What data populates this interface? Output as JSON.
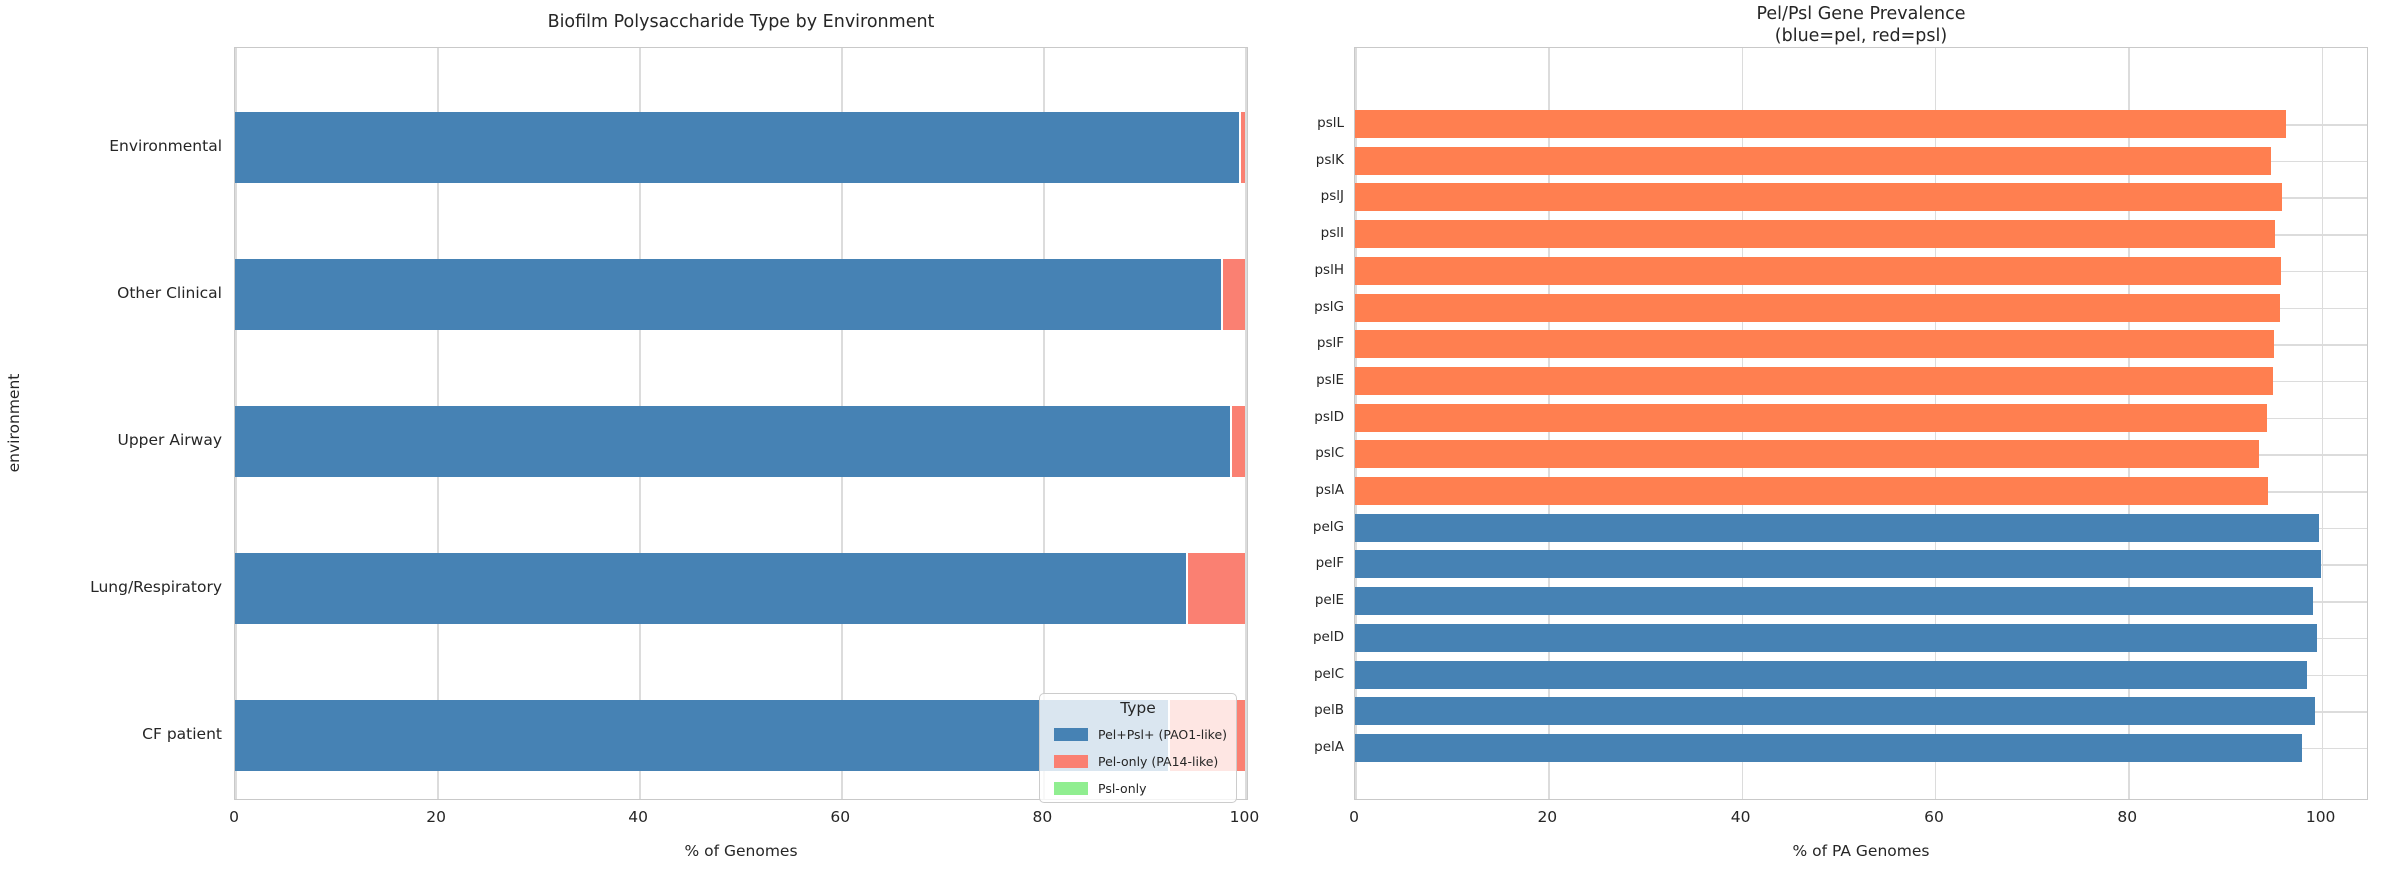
{
  "figure": {
    "background": "#ffffff",
    "grid_color": "#dcdcdc",
    "spine_color": "#c9c9c9",
    "text_color": "#262626"
  },
  "chart_data": [
    {
      "type": "bar",
      "orientation": "horizontal",
      "stacked": true,
      "title": "Biofilm Polysaccharide Type by Environment",
      "xlabel": "% of Genomes",
      "ylabel": "environment",
      "categories": [
        "Environmental",
        "Other Clinical",
        "Upper Airway",
        "Lung/Respiratory",
        "CF patient"
      ],
      "series": [
        {
          "name": "Pel+Psl+ (PAO1-like)",
          "color": "#4682b4",
          "values": [
            99.4,
            97.6,
            98.5,
            94.1,
            92.3
          ]
        },
        {
          "name": "Pel-only (PA14-like)",
          "color": "#fa8072",
          "values": [
            0.6,
            2.4,
            1.5,
            5.9,
            7.7
          ]
        },
        {
          "name": "Psl-only",
          "color": "#90ee90",
          "values": [
            0,
            0,
            0,
            0,
            0
          ]
        }
      ],
      "xticks": [
        0,
        20,
        40,
        60,
        80,
        100
      ],
      "xlim": [
        0,
        100.35
      ],
      "grid": true,
      "legend": {
        "title": "Type",
        "position": "lower right"
      }
    },
    {
      "type": "bar",
      "orientation": "horizontal",
      "stacked": false,
      "title": "Pel/Psl Gene Prevalence",
      "subtitle": "(blue=pel, red=psl)",
      "xlabel": "% of PA Genomes",
      "ylabel": "",
      "categories": [
        "pslL",
        "pslK",
        "pslJ",
        "pslI",
        "pslH",
        "pslG",
        "pslF",
        "pslE",
        "pslD",
        "pslC",
        "pslA",
        "pelG",
        "pelF",
        "pelE",
        "pelD",
        "pelC",
        "pelB",
        "pelA"
      ],
      "values": [
        96.3,
        94.8,
        95.9,
        95.2,
        95.8,
        95.7,
        95.1,
        95.0,
        94.3,
        93.5,
        94.4,
        99.7,
        99.9,
        99.1,
        99.5,
        98.5,
        99.3,
        98.0
      ],
      "group_colors": {
        "pel": "#4682b4",
        "psl": "#ff7f50"
      },
      "xticks": [
        0,
        20,
        40,
        60,
        80,
        100
      ],
      "xlim": [
        0,
        104.9
      ],
      "grid": true
    }
  ]
}
